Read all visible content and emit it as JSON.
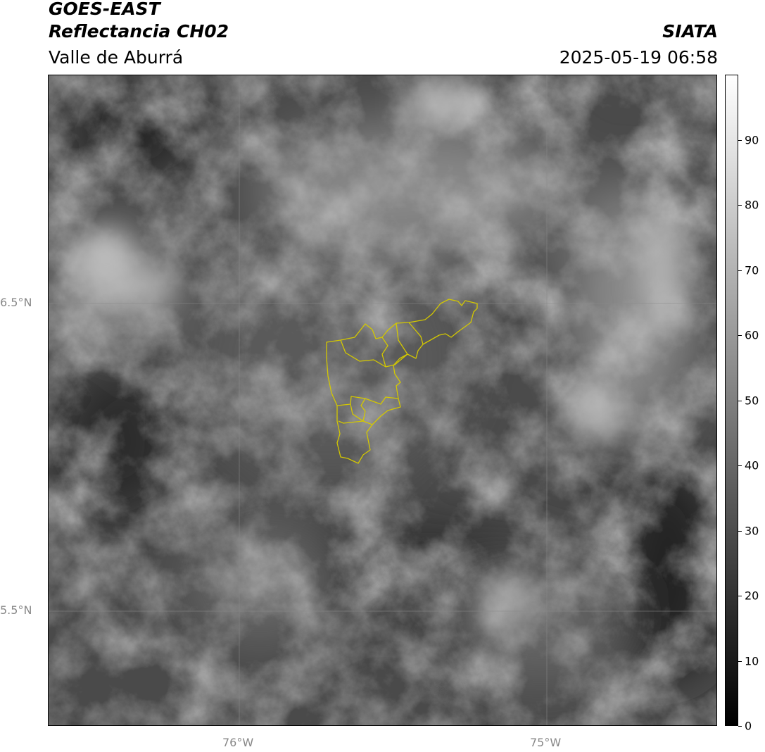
{
  "header": {
    "satellite": "GOES-EAST",
    "product": "Reflectancia CH02",
    "region": "Valle de Aburrá",
    "organization": "SIATA",
    "datetime": "2025-05-19 06:58"
  },
  "map": {
    "lat_labels": [
      "6.5°N",
      "5.5°N"
    ],
    "lon_labels": [
      "76°W",
      "75°W"
    ],
    "gridlines": true,
    "boundary_color": "#d4c800",
    "colormap": "grayscale"
  },
  "colorbar": {
    "range": [
      0,
      100
    ],
    "ticks": [
      "0",
      "10",
      "20",
      "30",
      "40",
      "50",
      "60",
      "70",
      "80",
      "90"
    ]
  }
}
